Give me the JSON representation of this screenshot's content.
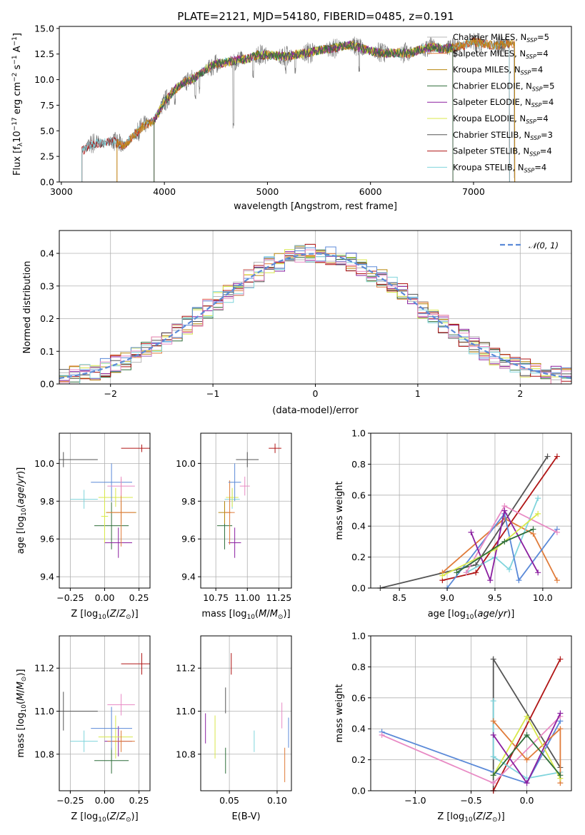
{
  "figure_title": "PLATE=2121, MJD=54180, FIBERID=0485, z=0.191",
  "colors": {
    "Chabrier MILES": "#b8b8b8",
    "Salpeter MILES": "#e07b39",
    "Kroupa MILES": "#b8860b",
    "Chabrier ELODIE": "#2f6e3a",
    "Salpeter ELODIE": "#8b1fa0",
    "Kroupa ELODIE": "#d8e84a",
    "Chabrier STELIB": "#555555",
    "Salpeter STELIB": "#b01515",
    "Kroupa STELIB": "#7fd4dc",
    "grey_light": "#888888",
    "blue": "#5b8ad8",
    "pink": "#e88ac4",
    "normal_fit": "#5b8ad8"
  },
  "chart_data": [
    {
      "type": "line",
      "id": "spectrum",
      "title": "PLATE=2121, MJD=54180, FIBERID=0485, z=0.191",
      "xlabel": "wavelength [Angstrom, rest frame]",
      "ylabel_parts": [
        "Flux [f",
        "λ",
        "10",
        "−17",
        " erg cm",
        "−2",
        " s",
        "−1",
        " A",
        "−1",
        "]"
      ],
      "xlim": [
        2980,
        7950
      ],
      "ylim": [
        0,
        15.2
      ],
      "xticks": [
        3000,
        4000,
        5000,
        6000,
        7000
      ],
      "yticks": [
        0.0,
        2.5,
        5.0,
        7.5,
        10.0,
        12.5,
        15.0
      ],
      "ytick_labels": [
        "0.0",
        "2.5",
        "5.0",
        "7.5",
        "10.0",
        "12.5",
        "15.0"
      ],
      "xtick_labels": [
        "3000",
        "4000",
        "5000",
        "6000",
        "7000"
      ],
      "legend_position": "upper-right",
      "legend": [
        {
          "name": "Chabrier MILES",
          "n": "5"
        },
        {
          "name": "Salpeter MILES",
          "n": "4"
        },
        {
          "name": "Kroupa MILES",
          "n": "4"
        },
        {
          "name": "Chabrier ELODIE",
          "n": "5"
        },
        {
          "name": "Salpeter ELODIE",
          "n": "4"
        },
        {
          "name": "Kroupa ELODIE",
          "n": "4"
        },
        {
          "name": "Chabrier STELIB",
          "n": "3"
        },
        {
          "name": "Salpeter STELIB",
          "n": "4"
        },
        {
          "name": "Kroupa STELIB",
          "n": "4"
        }
      ],
      "continuum": [
        [
          3200,
          3.0
        ],
        [
          3300,
          3.8
        ],
        [
          3400,
          3.8
        ],
        [
          3500,
          4.0
        ],
        [
          3600,
          3.5
        ],
        [
          3700,
          4.5
        ],
        [
          3800,
          5.5
        ],
        [
          3900,
          6.0
        ],
        [
          4000,
          7.8
        ],
        [
          4100,
          9.0
        ],
        [
          4200,
          9.8
        ],
        [
          4300,
          10.2
        ],
        [
          4400,
          11.0
        ],
        [
          4500,
          11.5
        ],
        [
          4600,
          11.7
        ],
        [
          4700,
          11.9
        ],
        [
          4800,
          12.0
        ],
        [
          4900,
          12.4
        ],
        [
          5000,
          12.4
        ],
        [
          5100,
          12.3
        ],
        [
          5200,
          12.3
        ],
        [
          5300,
          12.5
        ],
        [
          5400,
          12.6
        ],
        [
          5500,
          12.9
        ],
        [
          5600,
          13.0
        ],
        [
          5700,
          13.2
        ],
        [
          5800,
          13.4
        ],
        [
          5900,
          13.1
        ],
        [
          6000,
          12.8
        ],
        [
          6100,
          12.6
        ],
        [
          6200,
          12.6
        ],
        [
          6300,
          12.6
        ],
        [
          6400,
          12.6
        ],
        [
          6500,
          13.0
        ],
        [
          6600,
          13.2
        ],
        [
          6700,
          13.0
        ],
        [
          6800,
          13.1
        ],
        [
          6900,
          13.3
        ],
        [
          7000,
          13.7
        ],
        [
          7100,
          13.5
        ],
        [
          7200,
          13.3
        ],
        [
          7300,
          13.5
        ],
        [
          7400,
          13.5
        ]
      ],
      "model_ranges": [
        {
          "model": "Chabrier STELIB",
          "start": 3200,
          "end": 7350
        },
        {
          "model": "Salpeter STELIB",
          "start": 3200,
          "end": 7350
        },
        {
          "model": "Kroupa STELIB",
          "start": 3200,
          "end": 7350
        },
        {
          "model": "Salpeter MILES",
          "start": 3540,
          "end": 7400
        },
        {
          "model": "Kroupa MILES",
          "start": 3540,
          "end": 7400
        },
        {
          "model": "Kroupa ELODIE",
          "start": 3900,
          "end": 6800
        },
        {
          "model": "Salpeter ELODIE",
          "start": 3900,
          "end": 6800
        },
        {
          "model": "Chabrier ELODIE",
          "start": 3900,
          "end": 6800
        }
      ],
      "absorption_features": [
        [
          3934,
          8.0
        ],
        [
          3969,
          8.5
        ],
        [
          4102,
          8.0
        ],
        [
          4300,
          8.5
        ],
        [
          4340,
          9.0
        ],
        [
          4861,
          10.5
        ],
        [
          5175,
          10.8
        ],
        [
          5270,
          11.0
        ],
        [
          5890,
          11.0
        ],
        [
          4670,
          5.3
        ],
        [
          7400,
          0.0
        ]
      ]
    },
    {
      "type": "histogram",
      "id": "residuals",
      "xlabel": "(data-model)/error",
      "ylabel": "Normed distribution",
      "xlim": [
        -2.5,
        2.5
      ],
      "ylim": [
        0,
        0.47
      ],
      "xticks": [
        -2,
        -1,
        0,
        1,
        2
      ],
      "xtick_labels": [
        "−2",
        "−1",
        "0",
        "1",
        "2"
      ],
      "yticks": [
        0.0,
        0.1,
        0.2,
        0.3,
        0.4
      ],
      "ytick_labels": [
        "0.0",
        "0.1",
        "0.2",
        "0.3",
        "0.4"
      ],
      "bin_width": 0.1,
      "legend_position": "upper-right",
      "legend_label": "𝒩(0, 1)"
    },
    {
      "type": "scatter",
      "id": "age-vs-Z",
      "xlabel": "Z [log10(Z/Z⊙)]",
      "ylabel": "age  [log10(age/yr)]",
      "xlim": [
        -0.33,
        0.33
      ],
      "ylim": [
        9.34,
        10.16
      ],
      "xticks": [
        -0.25,
        0.0,
        0.25
      ],
      "xtick_labels": [
        "−0.25",
        "0.00",
        "0.25"
      ],
      "yticks": [
        9.4,
        9.6,
        9.8,
        10.0
      ],
      "ytick_labels": [
        "9.4",
        "9.6",
        "9.8",
        "10.0"
      ],
      "points": [
        {
          "model": "Chabrier STELIB",
          "x": -0.3,
          "y": 10.02,
          "xerr": 0.5,
          "yerr": 0.08
        },
        {
          "model": "Salpeter STELIB",
          "x": 0.27,
          "y": 10.08,
          "xerr": 0.3,
          "yerr": 0.04
        },
        {
          "model": "Kroupa STELIB",
          "x": -0.15,
          "y": 9.81,
          "xerr": 0.2,
          "yerr": 0.1
        },
        {
          "model": "Chabrier ELODIE",
          "x": 0.05,
          "y": 9.67,
          "xerr": 0.25,
          "yerr": 0.25
        },
        {
          "model": "Salpeter ELODIE",
          "x": 0.1,
          "y": 9.58,
          "xerr": 0.2,
          "yerr": 0.16
        },
        {
          "model": "Kroupa ELODIE",
          "x": 0.08,
          "y": 9.82,
          "xerr": 0.25,
          "yerr": 0.1
        },
        {
          "model": "Kroupa MILES",
          "x": 0.12,
          "y": 9.74,
          "xerr": 0.22,
          "yerr": 0.12
        },
        {
          "model": "Salpeter MILES",
          "x": 0.12,
          "y": 9.74,
          "xerr": 0.2,
          "yerr": 0.36
        },
        {
          "model": "blue",
          "x": 0.05,
          "y": 9.9,
          "xerr": 0.3,
          "yerr": 0.2
        },
        {
          "model": "pink",
          "x": 0.12,
          "y": 9.88,
          "xerr": 0.2,
          "yerr": 0.1
        },
        {
          "model": "Kroupa ELODIE",
          "x": 0.0,
          "y": 9.72,
          "xerr": 0.05,
          "yerr": 0.28
        }
      ]
    },
    {
      "type": "scatter",
      "id": "age-vs-mass",
      "xlabel": "mass [log10(M/M⊙)]",
      "xlim": [
        10.63,
        11.35
      ],
      "ylim": [
        9.34,
        10.16
      ],
      "xticks": [
        10.75,
        11.0,
        11.25
      ],
      "xtick_labels": [
        "10.75",
        "11.00",
        "11.25"
      ],
      "yticks": [
        9.4,
        9.6,
        9.8,
        10.0
      ],
      "ytick_labels": [
        "9.4",
        "9.6",
        "9.8",
        "10.0"
      ],
      "points": [
        {
          "model": "Chabrier STELIB",
          "x": 11.0,
          "y": 10.02,
          "xerr": 0.18,
          "yerr": 0.08
        },
        {
          "model": "Salpeter STELIB",
          "x": 11.22,
          "y": 10.08,
          "xerr": 0.1,
          "yerr": 0.05
        },
        {
          "model": "Kroupa STELIB",
          "x": 10.88,
          "y": 9.81,
          "xerr": 0.12,
          "yerr": 0.1
        },
        {
          "model": "Chabrier ELODIE",
          "x": 10.82,
          "y": 9.67,
          "xerr": 0.12,
          "yerr": 0.25
        },
        {
          "model": "Salpeter ELODIE",
          "x": 10.9,
          "y": 9.58,
          "xerr": 0.1,
          "yerr": 0.16
        },
        {
          "model": "Kroupa ELODIE",
          "x": 10.88,
          "y": 9.82,
          "xerr": 0.1,
          "yerr": 0.1
        },
        {
          "model": "Kroupa MILES",
          "x": 10.82,
          "y": 9.74,
          "xerr": 0.1,
          "yerr": 0.12
        },
        {
          "model": "Salpeter MILES",
          "x": 10.86,
          "y": 9.74,
          "xerr": 0.08,
          "yerr": 0.34
        },
        {
          "model": "blue",
          "x": 10.9,
          "y": 9.9,
          "xerr": 0.1,
          "yerr": 0.2
        },
        {
          "model": "pink",
          "x": 10.98,
          "y": 9.88,
          "xerr": 0.08,
          "yerr": 0.1
        }
      ]
    },
    {
      "type": "line",
      "id": "mass-weight-vs-age",
      "xlabel": "age  [log10(age/yr)]",
      "ylabel": "mass weight",
      "xlim": [
        8.2,
        10.3
      ],
      "ylim": [
        0,
        1.0
      ],
      "xticks": [
        8.5,
        9.0,
        9.5,
        10.0
      ],
      "xtick_labels": [
        "8.5",
        "9.0",
        "9.5",
        "10.0"
      ],
      "yticks": [
        0.0,
        0.2,
        0.4,
        0.6,
        0.8,
        1.0
      ],
      "ytick_labels": [
        "0.0",
        "0.2",
        "0.4",
        "0.6",
        "0.8",
        "1.0"
      ],
      "series": [
        {
          "model": "Chabrier STELIB",
          "x": [
            8.3,
            9.3,
            10.05
          ],
          "y": [
            0.0,
            0.15,
            0.85
          ]
        },
        {
          "model": "Salpeter STELIB",
          "x": [
            8.95,
            9.3,
            10.15
          ],
          "y": [
            0.05,
            0.1,
            0.85
          ]
        },
        {
          "model": "Salpeter MILES",
          "x": [
            8.95,
            9.6,
            9.9,
            10.15
          ],
          "y": [
            0.1,
            0.45,
            0.35,
            0.05
          ]
        },
        {
          "model": "Kroupa STELIB",
          "x": [
            9.2,
            9.5,
            9.65,
            9.95
          ],
          "y": [
            0.1,
            0.2,
            0.12,
            0.58
          ]
        },
        {
          "model": "blue",
          "x": [
            9.0,
            9.6,
            9.75,
            10.15
          ],
          "y": [
            0.0,
            0.48,
            0.05,
            0.38
          ]
        },
        {
          "model": "pink",
          "x": [
            9.2,
            9.6,
            10.15
          ],
          "y": [
            0.1,
            0.53,
            0.36
          ]
        },
        {
          "model": "Salpeter ELODIE",
          "x": [
            9.25,
            9.45,
            9.6,
            9.95
          ],
          "y": [
            0.36,
            0.05,
            0.5,
            0.1
          ]
        },
        {
          "model": "Kroupa ELODIE",
          "x": [
            8.95,
            9.5,
            9.95
          ],
          "y": [
            0.08,
            0.25,
            0.48
          ]
        },
        {
          "model": "Chabrier ELODIE",
          "x": [
            9.1,
            9.6,
            9.9
          ],
          "y": [
            0.1,
            0.3,
            0.38
          ]
        }
      ]
    },
    {
      "type": "scatter",
      "id": "mass-vs-Z",
      "xlabel": "Z [log10(Z/Z⊙)]",
      "ylabel": "mass [log10(M/M⊙)]",
      "xlim": [
        -0.33,
        0.33
      ],
      "ylim": [
        10.63,
        11.35
      ],
      "xticks": [
        -0.25,
        0.0,
        0.25
      ],
      "xtick_labels": [
        "−0.25",
        "0.00",
        "0.25"
      ],
      "yticks": [
        10.8,
        11.0,
        11.2
      ],
      "ytick_labels": [
        "10.8",
        "11.0",
        "11.2"
      ],
      "points": [
        {
          "model": "Chabrier STELIB",
          "x": -0.3,
          "y": 11.0,
          "xerr": 0.5,
          "yerr": 0.18
        },
        {
          "model": "Salpeter STELIB",
          "x": 0.27,
          "y": 11.22,
          "xerr": 0.3,
          "yerr": 0.1
        },
        {
          "model": "Kroupa STELIB",
          "x": -0.15,
          "y": 10.86,
          "xerr": 0.2,
          "yerr": 0.1
        },
        {
          "model": "Chabrier ELODIE",
          "x": 0.05,
          "y": 10.77,
          "xerr": 0.25,
          "yerr": 0.12
        },
        {
          "model": "Salpeter ELODIE",
          "x": 0.1,
          "y": 10.86,
          "xerr": 0.2,
          "yerr": 0.14
        },
        {
          "model": "Kroupa ELODIE",
          "x": 0.08,
          "y": 10.88,
          "xerr": 0.25,
          "yerr": 0.2
        },
        {
          "model": "Salpeter MILES",
          "x": 0.12,
          "y": 10.86,
          "xerr": 0.2,
          "yerr": 0.1
        },
        {
          "model": "blue",
          "x": 0.05,
          "y": 10.92,
          "xerr": 0.3,
          "yerr": 0.2
        },
        {
          "model": "pink",
          "x": 0.12,
          "y": 11.03,
          "xerr": 0.2,
          "yerr": 0.1
        }
      ]
    },
    {
      "type": "scatter",
      "id": "mass-vs-EBV",
      "xlabel": "E(B-V)",
      "xlim": [
        0.02,
        0.115
      ],
      "ylim": [
        10.63,
        11.35
      ],
      "xticks": [
        0.05,
        0.1
      ],
      "xtick_labels": [
        "0.05",
        "0.10"
      ],
      "yticks": [
        10.8,
        11.0,
        11.2
      ],
      "ytick_labels": [
        "10.8",
        "11.0",
        "11.2"
      ],
      "points": [
        {
          "model": "Chabrier STELIB",
          "x": 0.046,
          "y": 11.05,
          "yerr": 0.12
        },
        {
          "model": "Salpeter STELIB",
          "x": 0.052,
          "y": 11.22,
          "yerr": 0.1
        },
        {
          "model": "Kroupa STELIB",
          "x": 0.076,
          "y": 10.86,
          "yerr": 0.1
        },
        {
          "model": "Chabrier ELODIE",
          "x": 0.046,
          "y": 10.77,
          "yerr": 0.12
        },
        {
          "model": "Salpeter ELODIE",
          "x": 0.025,
          "y": 10.92,
          "yerr": 0.14
        },
        {
          "model": "Kroupa ELODIE",
          "x": 0.035,
          "y": 10.88,
          "yerr": 0.2
        },
        {
          "model": "Salpeter MILES",
          "x": 0.108,
          "y": 10.75,
          "yerr": 0.16
        },
        {
          "model": "blue",
          "x": 0.112,
          "y": 10.9,
          "yerr": 0.14
        },
        {
          "model": "pink",
          "x": 0.105,
          "y": 10.98,
          "yerr": 0.12
        }
      ]
    },
    {
      "type": "line",
      "id": "mass-weight-vs-Z",
      "xlabel": "Z [log10(Z/Z⊙)]",
      "ylabel": "mass weight",
      "xlim": [
        -1.4,
        0.4
      ],
      "ylim": [
        0,
        1.0
      ],
      "xticks": [
        -1.0,
        -0.5,
        0.0
      ],
      "xtick_labels": [
        "−1.0",
        "−0.5",
        "0.0"
      ],
      "yticks": [
        0.0,
        0.2,
        0.4,
        0.6,
        0.8,
        1.0
      ],
      "ytick_labels": [
        "0.0",
        "0.2",
        "0.4",
        "0.6",
        "0.8",
        "1.0"
      ],
      "series": [
        {
          "model": "Chabrier STELIB",
          "x": [
            -0.3,
            -0.3,
            0.3
          ],
          "y": [
            0.0,
            0.85,
            0.15
          ]
        },
        {
          "model": "Salpeter STELIB",
          "x": [
            -0.3,
            0.3
          ],
          "y": [
            0.0,
            0.85
          ]
        },
        {
          "model": "blue",
          "x": [
            -1.3,
            -0.3,
            0.0,
            0.3
          ],
          "y": [
            0.38,
            0.12,
            0.05,
            0.45
          ]
        },
        {
          "model": "pink",
          "x": [
            -1.3,
            -0.3,
            0.3
          ],
          "y": [
            0.36,
            0.05,
            0.48
          ]
        },
        {
          "model": "Kroupa STELIB",
          "x": [
            -0.3,
            -0.3,
            0.0,
            0.3
          ],
          "y": [
            0.58,
            0.22,
            0.08,
            0.12
          ]
        },
        {
          "model": "Salpeter MILES",
          "x": [
            -0.3,
            0.0,
            0.3,
            0.3
          ],
          "y": [
            0.45,
            0.2,
            0.4,
            0.05
          ]
        },
        {
          "model": "Kroupa ELODIE",
          "x": [
            -0.3,
            0.0,
            0.3
          ],
          "y": [
            0.1,
            0.48,
            0.08
          ]
        },
        {
          "model": "Salpeter ELODIE",
          "x": [
            -0.3,
            0.0,
            0.3
          ],
          "y": [
            0.36,
            0.05,
            0.5
          ]
        },
        {
          "model": "Chabrier ELODIE",
          "x": [
            -0.3,
            0.0,
            0.3
          ],
          "y": [
            0.1,
            0.36,
            0.1
          ]
        }
      ]
    }
  ]
}
